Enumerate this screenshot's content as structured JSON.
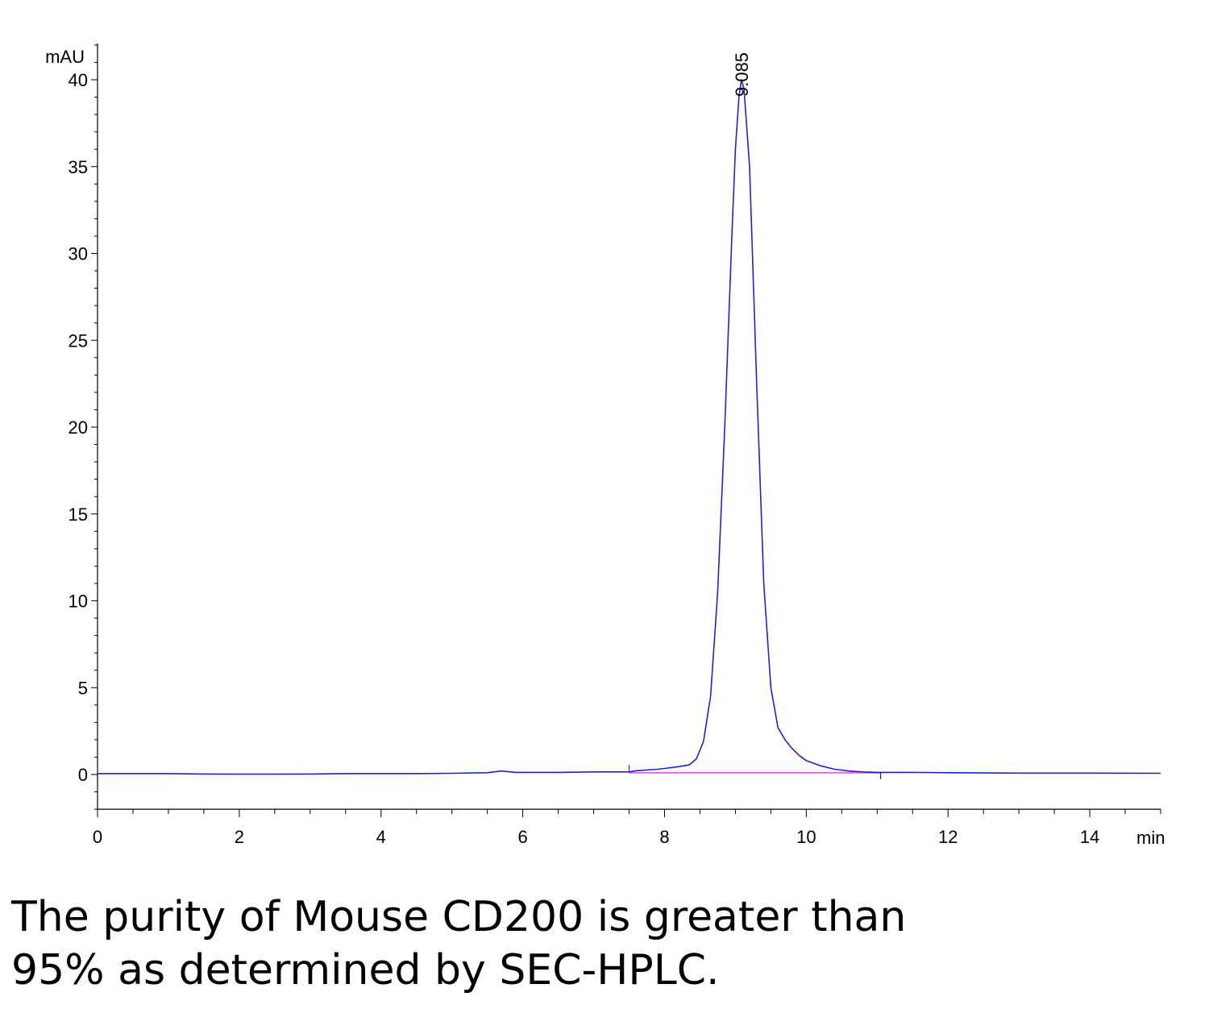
{
  "chart_data": {
    "type": "line",
    "ylabel": "mAU",
    "xlabel": "min",
    "xlim": [
      0,
      15
    ],
    "ylim": [
      -2,
      42
    ],
    "x_ticks": [
      0,
      2,
      4,
      6,
      8,
      10,
      12,
      14
    ],
    "y_ticks": [
      0,
      5,
      10,
      15,
      20,
      25,
      30,
      35,
      40
    ],
    "grid": false,
    "colors": {
      "trace": "#2222cc",
      "baseline": "#ee66ee",
      "axis": "#000000"
    },
    "peak": {
      "label": "9.085",
      "rt": 9.085,
      "height": 40
    },
    "integration_baseline": {
      "x": [
        7.5,
        11.05
      ],
      "y": [
        0.1,
        0.1
      ]
    },
    "series": [
      {
        "x": [
          0,
          0.5,
          1,
          1.5,
          2,
          2.5,
          3,
          3.5,
          4,
          4.5,
          5,
          5.5,
          5.7,
          5.9,
          6.5,
          7.0,
          7.4,
          7.5,
          7.6,
          7.9,
          8.0,
          8.2,
          8.35,
          8.45,
          8.55,
          8.65,
          8.75,
          8.85,
          8.95,
          9.0,
          9.05,
          9.085,
          9.12,
          9.2,
          9.3,
          9.4,
          9.5,
          9.6,
          9.7,
          9.8,
          9.9,
          10.0,
          10.2,
          10.4,
          10.6,
          10.8,
          11.0,
          11.5,
          12,
          13,
          14,
          15
        ],
        "y": [
          0.05,
          0.05,
          0.05,
          0.03,
          0.02,
          0.02,
          0.03,
          0.05,
          0.05,
          0.05,
          0.07,
          0.1,
          0.2,
          0.12,
          0.12,
          0.15,
          0.15,
          0.15,
          0.22,
          0.3,
          0.35,
          0.45,
          0.55,
          0.9,
          1.9,
          4.5,
          10.5,
          20,
          31,
          36,
          39,
          40,
          39.5,
          35,
          22.5,
          11,
          5,
          2.7,
          2.0,
          1.5,
          1.1,
          0.8,
          0.5,
          0.3,
          0.2,
          0.15,
          0.12,
          0.12,
          0.1,
          0.08,
          0.08,
          0.07
        ]
      }
    ]
  },
  "caption": {
    "line1": "The purity of Mouse CD200 is greater than",
    "line2": "95% as determined by SEC-HPLC."
  }
}
